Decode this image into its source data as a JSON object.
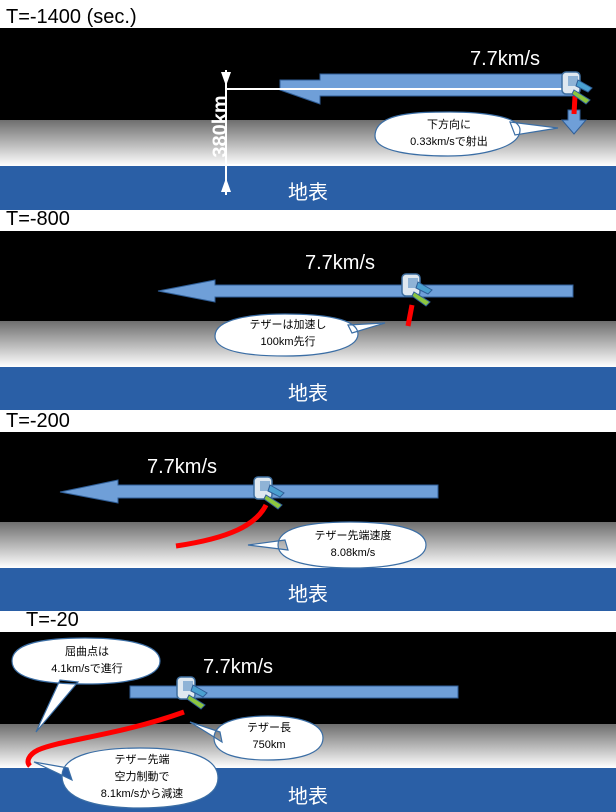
{
  "panels": [
    {
      "time": "T=-1400 (sec.)",
      "speed": "7.7km/s",
      "ground": "地表",
      "altitude": "380km",
      "callout": [
        "下方向に",
        "0.33km/sで射出"
      ]
    },
    {
      "time": "T=-800",
      "speed": "7.7km/s",
      "ground": "地表",
      "callout": [
        "テザーは加速し",
        "100km先行"
      ]
    },
    {
      "time": "T=-200",
      "speed": "7.7km/s",
      "ground": "地表",
      "callout": [
        "テザー先端速度",
        "8.08km/s"
      ]
    },
    {
      "time": "T=-20",
      "speed": "7.7km/s",
      "ground": "地表",
      "callout_top": [
        "屈曲点は",
        "4.1km/sで進行"
      ],
      "callout_mid": [
        "テザー長",
        "750km"
      ],
      "callout_bottom": [
        "テザー先端",
        "空力制動で",
        "8.1km/sから減速"
      ]
    }
  ],
  "colors": {
    "sky": "#000000",
    "ground": "#2a5fa6",
    "arrow": "#6f9fd8",
    "tether": "#ff0000"
  }
}
